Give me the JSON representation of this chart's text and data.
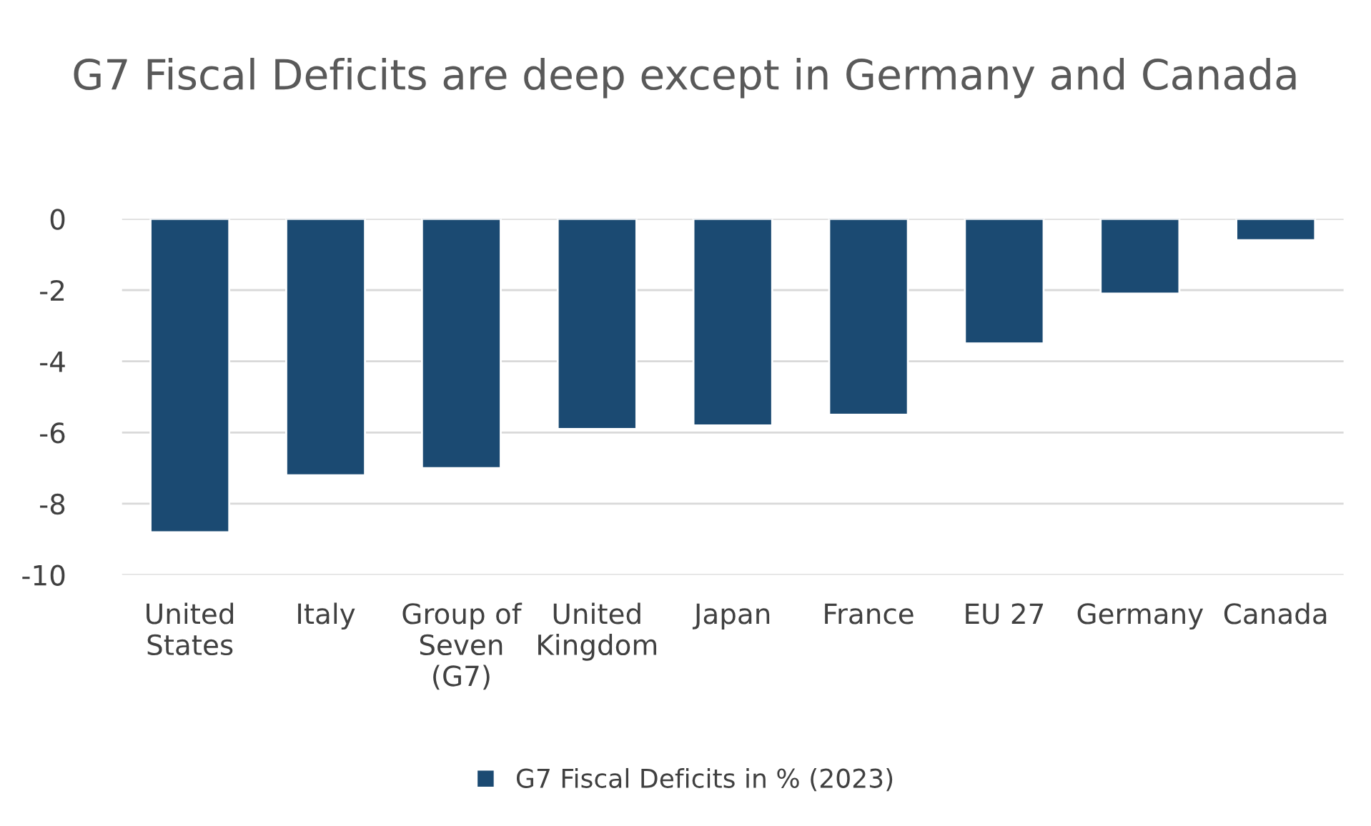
{
  "chart_data": {
    "type": "bar",
    "title": "G7 Fiscal Deficits are deep except in Germany and Canada",
    "categories": [
      "United States",
      "Italy",
      "Group of Seven (G7)",
      "United Kingdom",
      "Japan",
      "France",
      "EU 27",
      "Germany",
      "Canada"
    ],
    "series": [
      {
        "name": "G7 Fiscal Deficits in % (2023)",
        "color": "#1b4a72",
        "values": [
          -8.8,
          -7.2,
          -7.0,
          -5.9,
          -5.8,
          -5.5,
          -3.5,
          -2.1,
          -0.6
        ]
      }
    ],
    "ylim": [
      -10,
      0
    ],
    "yticks": [
      -10,
      -8,
      -6,
      -4,
      -2,
      0
    ],
    "grid": "y",
    "legend": "bottom"
  }
}
